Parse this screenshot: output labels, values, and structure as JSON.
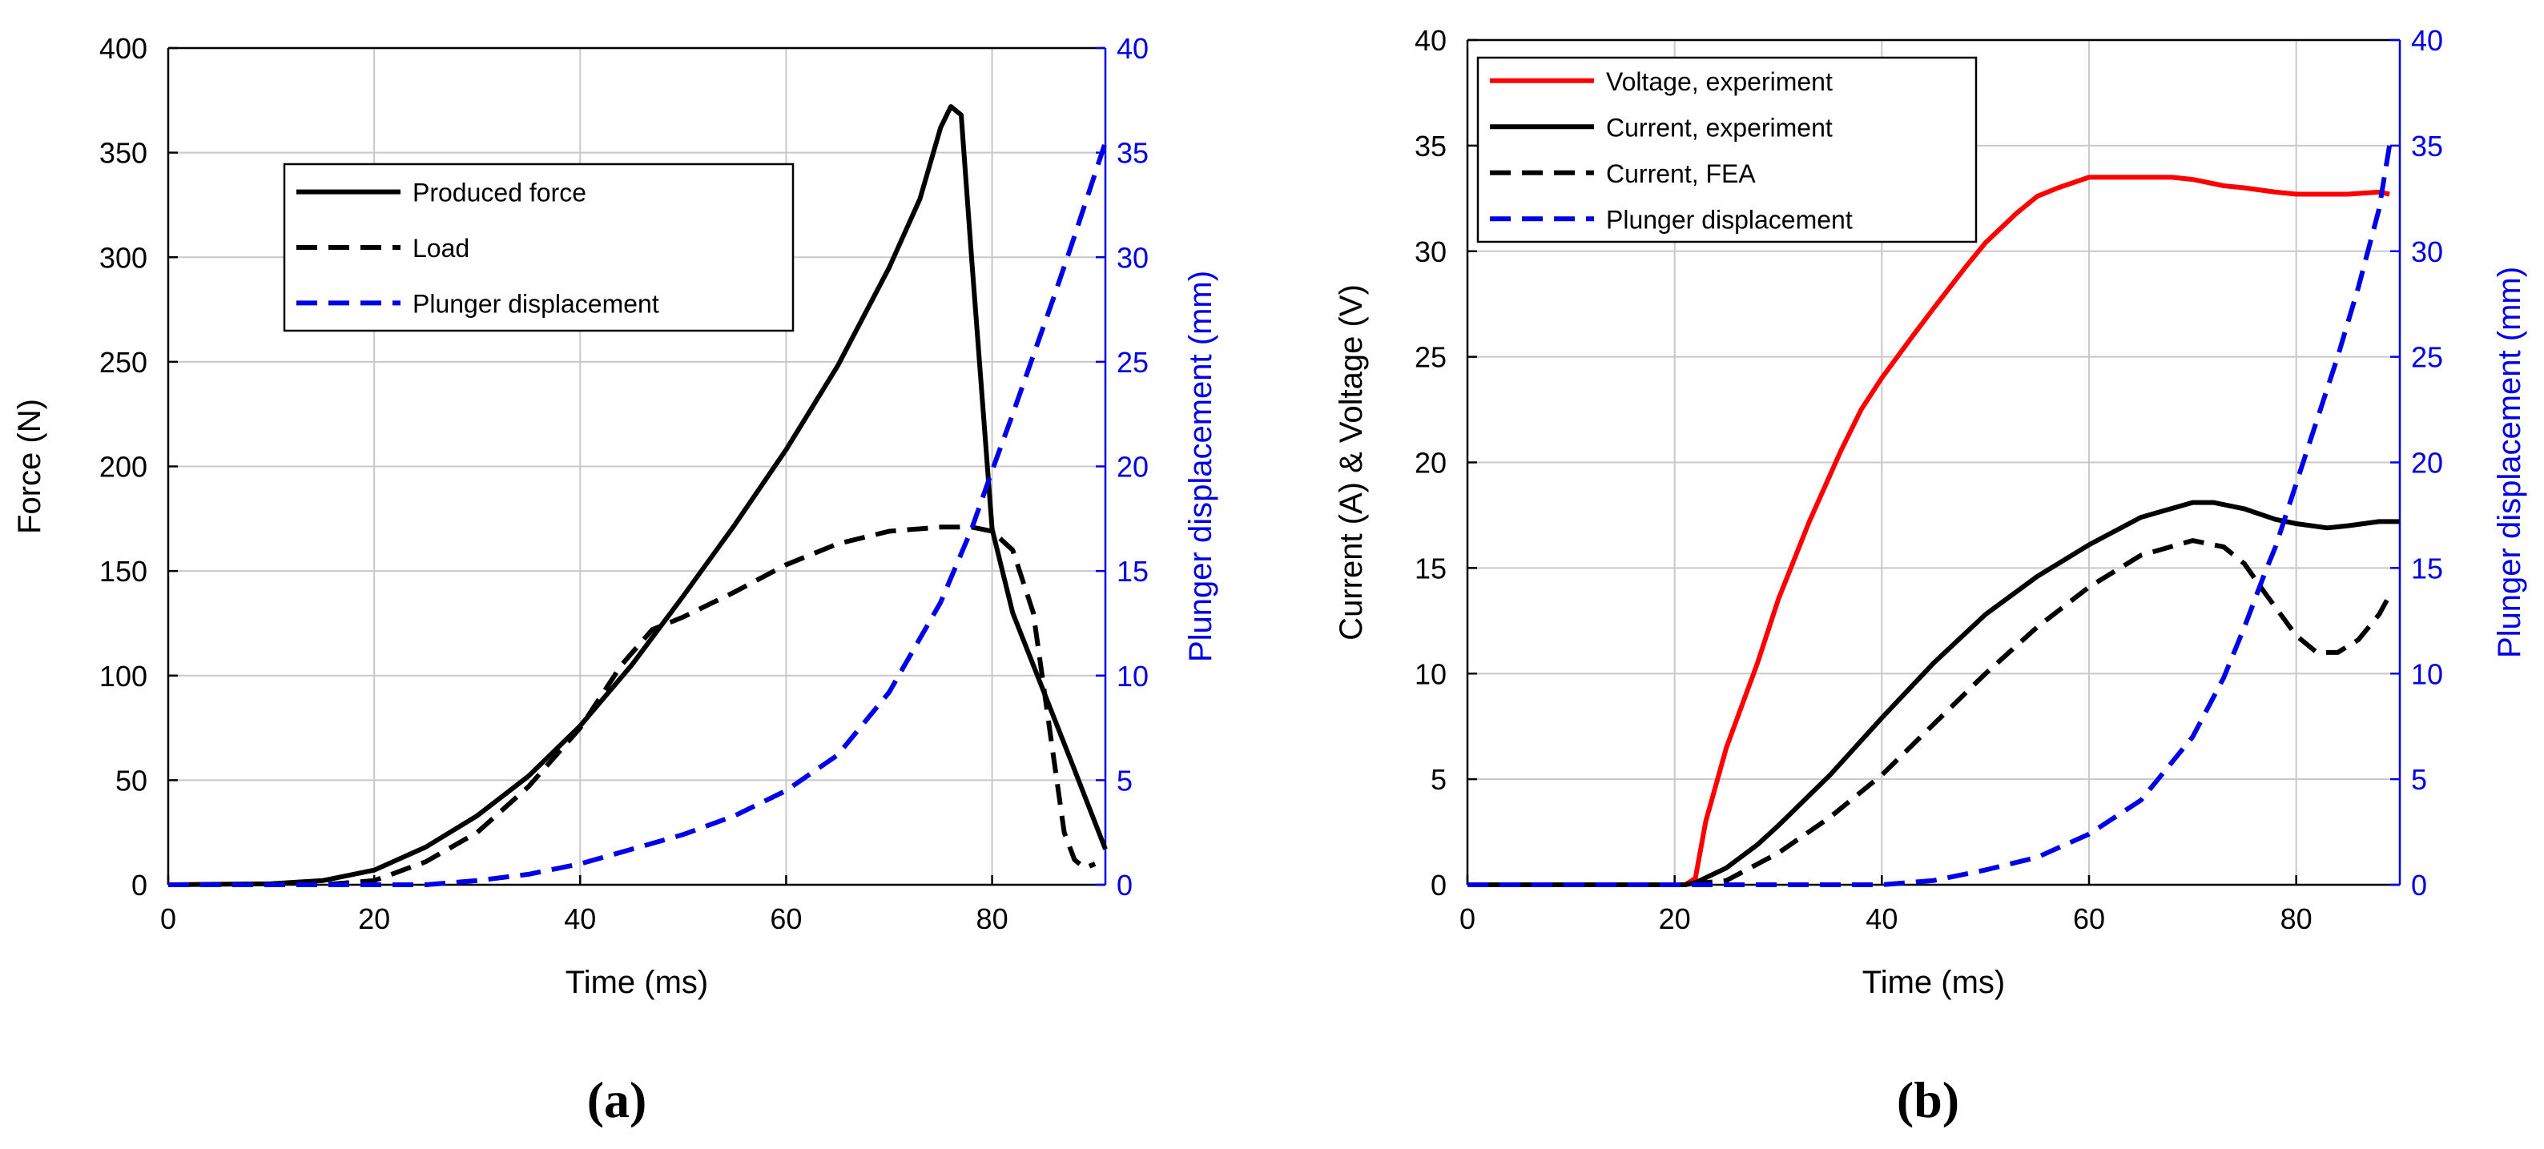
{
  "chart_data": [
    {
      "id": "a",
      "type": "line",
      "caption": "(a)",
      "xlabel": "Time (ms)",
      "ylabel": "Force (N)",
      "y2label": "Plunger displacement (mm)",
      "xlim": [
        0,
        91
      ],
      "ylim": [
        0,
        400
      ],
      "y2lim": [
        0,
        40
      ],
      "xticks": [
        0,
        20,
        40,
        60,
        80
      ],
      "yticks": [
        0,
        50,
        100,
        150,
        200,
        250,
        300,
        350,
        400
      ],
      "y2ticks": [
        0,
        5,
        10,
        15,
        20,
        25,
        30,
        35,
        40
      ],
      "grid": true,
      "legend_position": "upper-left",
      "series": [
        {
          "name": "Produced force",
          "axis": "left",
          "color": "#000000",
          "dash": "solid",
          "x": [
            0,
            10,
            15,
            20,
            25,
            30,
            35,
            40,
            45,
            50,
            55,
            60,
            65,
            70,
            73,
            75,
            76,
            77,
            78,
            80,
            82,
            84,
            86,
            88,
            91
          ],
          "y": [
            0,
            0.5,
            2,
            7,
            18,
            33,
            52,
            76,
            105,
            138,
            172,
            208,
            248,
            295,
            328,
            362,
            372,
            368,
            300,
            170,
            130,
            105,
            80,
            55,
            17
          ]
        },
        {
          "name": "Load",
          "axis": "left",
          "color": "#000000",
          "dash": "dashed",
          "x": [
            0,
            15,
            20,
            25,
            30,
            35,
            40,
            44,
            47,
            50,
            55,
            60,
            65,
            70,
            75,
            78,
            80,
            82,
            84,
            86,
            87,
            88,
            89,
            90
          ],
          "y": [
            0,
            0,
            2,
            11,
            25,
            47,
            75,
            105,
            122,
            128,
            140,
            153,
            163,
            169,
            171,
            171,
            169,
            160,
            130,
            60,
            25,
            12,
            8,
            10
          ]
        },
        {
          "name": "Plunger displacement",
          "axis": "right",
          "color": "#0000e6",
          "dash": "dashed",
          "x": [
            0,
            25,
            30,
            35,
            40,
            45,
            50,
            55,
            60,
            65,
            70,
            75,
            78,
            80,
            82,
            84,
            86,
            88,
            90,
            91
          ],
          "y": [
            0,
            0,
            0.2,
            0.5,
            1.0,
            1.7,
            2.4,
            3.3,
            4.5,
            6.2,
            9.2,
            13.5,
            17.0,
            19.8,
            22.5,
            25.3,
            28.1,
            31.0,
            34.0,
            35.5
          ]
        }
      ]
    },
    {
      "id": "b",
      "type": "line",
      "caption": "(b)",
      "xlabel": "Time (ms)",
      "ylabel": "Current (A) & Voltage (V)",
      "y2label": "Plunger displacement (mm)",
      "xlim": [
        0,
        90
      ],
      "ylim": [
        0,
        40
      ],
      "y2lim": [
        0,
        40
      ],
      "xticks": [
        0,
        20,
        40,
        60,
        80
      ],
      "yticks": [
        0,
        5,
        10,
        15,
        20,
        25,
        30,
        35,
        40
      ],
      "y2ticks": [
        0,
        5,
        10,
        15,
        20,
        25,
        30,
        35,
        40
      ],
      "grid": true,
      "legend_position": "upper-left",
      "series": [
        {
          "name": "Voltage, experiment",
          "axis": "left",
          "color": "#ff0000",
          "dash": "solid",
          "x": [
            0,
            21,
            22,
            23,
            25,
            28,
            30,
            33,
            36,
            38,
            40,
            43,
            45,
            48,
            50,
            53,
            55,
            57,
            60,
            63,
            65,
            68,
            70,
            73,
            75,
            78,
            80,
            85,
            88,
            89
          ],
          "y": [
            0,
            0,
            0.3,
            3,
            6.5,
            10.5,
            13.5,
            17.2,
            20.5,
            22.5,
            24,
            26,
            27.3,
            29.2,
            30.4,
            31.8,
            32.6,
            33,
            33.5,
            33.5,
            33.5,
            33.5,
            33.4,
            33.1,
            33,
            32.8,
            32.7,
            32.7,
            32.8,
            32.7
          ]
        },
        {
          "name": "Current, experiment",
          "axis": "left",
          "color": "#000000",
          "dash": "solid",
          "x": [
            0,
            21,
            22,
            25,
            28,
            30,
            35,
            40,
            45,
            50,
            55,
            60,
            65,
            70,
            72,
            75,
            78,
            80,
            83,
            85,
            88,
            90
          ],
          "y": [
            0,
            0,
            0.1,
            0.8,
            1.9,
            2.8,
            5.2,
            7.9,
            10.5,
            12.8,
            14.6,
            16.1,
            17.4,
            18.1,
            18.1,
            17.8,
            17.3,
            17.1,
            16.9,
            17.0,
            17.2,
            17.2
          ]
        },
        {
          "name": "Current, FEA",
          "axis": "left",
          "color": "#000000",
          "dash": "dashed",
          "x": [
            0,
            21,
            25,
            30,
            35,
            40,
            45,
            50,
            55,
            60,
            65,
            70,
            73,
            75,
            77,
            80,
            82,
            84,
            86,
            88,
            89
          ],
          "y": [
            0,
            0,
            0.2,
            1.5,
            3.2,
            5.2,
            7.6,
            10,
            12.2,
            14.1,
            15.6,
            16.3,
            16.0,
            15.2,
            13.8,
            11.8,
            11.0,
            11.0,
            11.6,
            12.8,
            13.7
          ]
        },
        {
          "name": "Plunger displacement",
          "axis": "right",
          "color": "#0000e6",
          "dash": "dashed",
          "x": [
            0,
            40,
            45,
            50,
            55,
            60,
            65,
            70,
            73,
            75,
            77,
            78,
            80,
            82,
            84,
            86,
            88,
            89
          ],
          "y": [
            0,
            0,
            0.2,
            0.7,
            1.3,
            2.4,
            4.0,
            7.0,
            9.8,
            12.2,
            14.8,
            16.0,
            19.0,
            22.0,
            25.0,
            28.3,
            32.0,
            35.0
          ]
        }
      ]
    }
  ]
}
